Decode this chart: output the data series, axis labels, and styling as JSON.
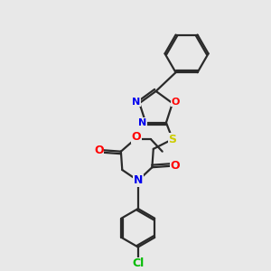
{
  "background_color": "#e8e8e8",
  "bond_color": "#2a2a2a",
  "N_color": "#0000ee",
  "O_color": "#ff0000",
  "S_color": "#cccc00",
  "Cl_color": "#00bb00",
  "figsize": [
    3.0,
    3.0
  ],
  "dpi": 100,
  "xlim": [
    0,
    10
  ],
  "ylim": [
    0,
    10
  ]
}
